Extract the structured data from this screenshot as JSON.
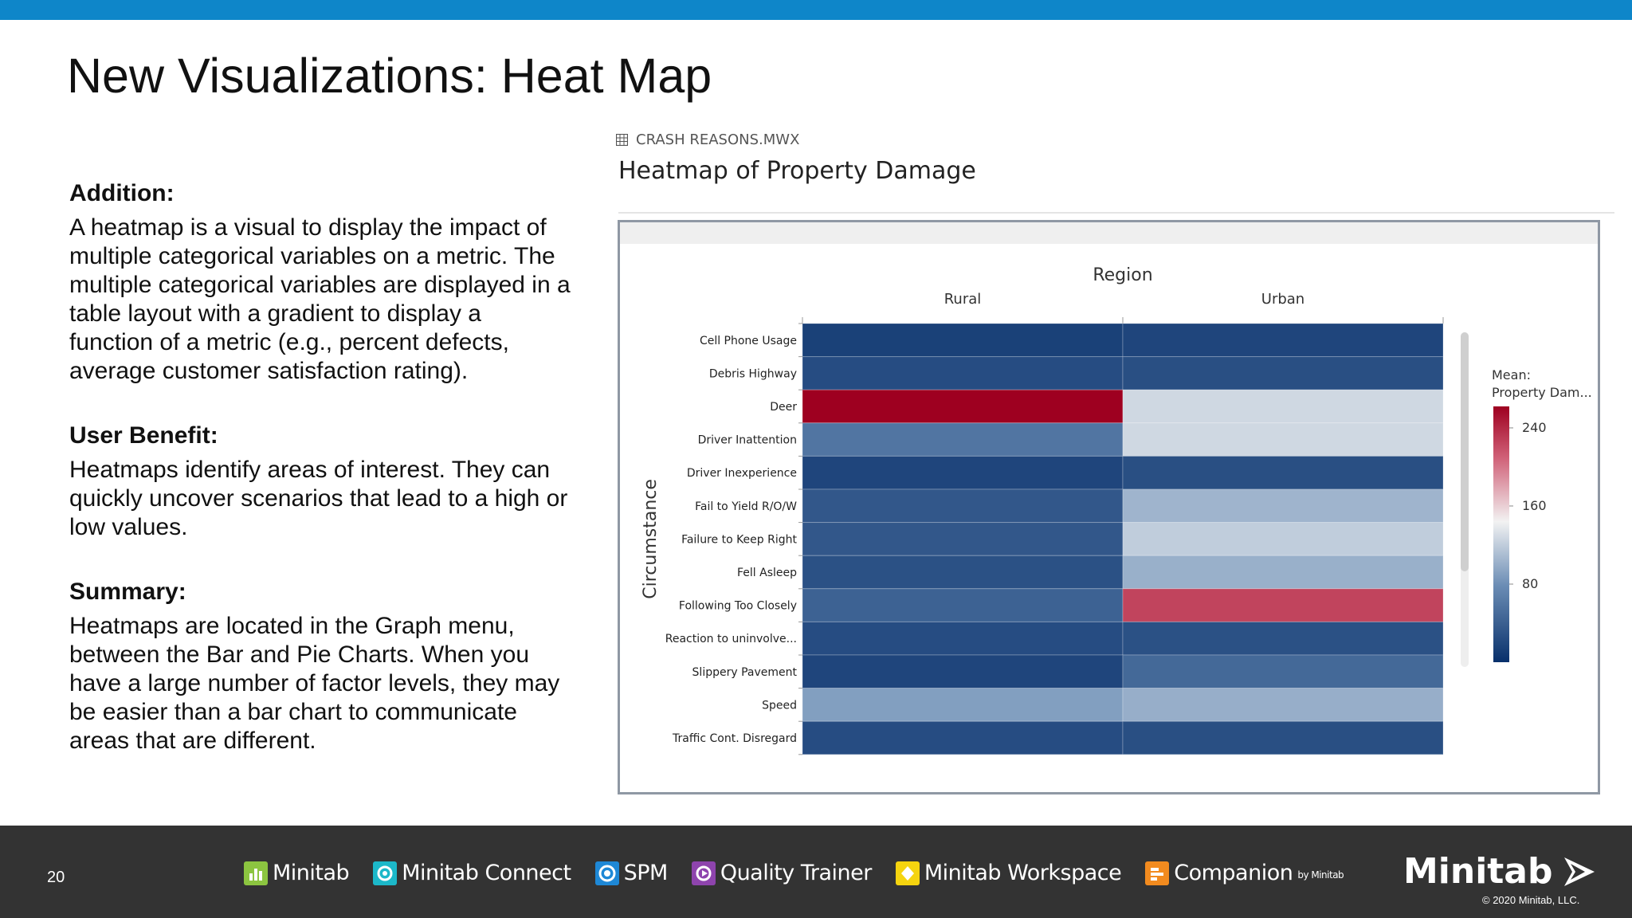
{
  "slide": {
    "title": "New Visualizations: Heat Map",
    "page_number": "20"
  },
  "sections": [
    {
      "heading": "Addition:",
      "body": "A heatmap is a visual to display the impact of multiple categorical variables on a metric. The multiple categorical variables are displayed in a table layout with a gradient to display a function of a metric (e.g., percent defects, average customer satisfaction rating)."
    },
    {
      "heading": "User Benefit:",
      "body": "Heatmaps identify areas of interest. They can quickly uncover scenarios that lead to a high or low values."
    },
    {
      "heading": "Summary:",
      "body": "Heatmaps are located in the Graph menu, between the Bar and Pie Charts. When you have a large number of factor levels, they may be easier than a bar chart to communicate areas that are different."
    }
  ],
  "panel": {
    "file_name": "CRASH REASONS.MWX",
    "heading": "Heatmap of Property Damage"
  },
  "colors": {
    "top_bar": "#0e86c9",
    "footer": "#333333",
    "scale_low": "#08306b",
    "scale_mid": "#f7f7f7",
    "scale_high": "#9e0020"
  },
  "chart_data": {
    "type": "heatmap",
    "title": "Region",
    "xlabel": "Region",
    "ylabel": "Circumstance",
    "x_categories": [
      "Rural",
      "Urban"
    ],
    "y_categories": [
      "Cell Phone Usage",
      "Debris Highway",
      "Deer",
      "Driver Inattention",
      "Driver Inexperience",
      "Fail to Yield R/O/W",
      "Failure to Keep Right",
      "Fell Asleep",
      "Following Too Closely",
      "Reaction to uninvolve...",
      "Slippery Pavement",
      "Speed",
      "Traffic Cont. Disregard"
    ],
    "values": [
      [
        14,
        18
      ],
      [
        24,
        26
      ],
      [
        262,
        127
      ],
      [
        58,
        127
      ],
      [
        18,
        26
      ],
      [
        33,
        104
      ],
      [
        33,
        120
      ],
      [
        28,
        101
      ],
      [
        42,
        225
      ],
      [
        24,
        28
      ],
      [
        18,
        48
      ],
      [
        90,
        100
      ],
      [
        24,
        26
      ]
    ],
    "legend": {
      "title": "Mean: Property Dam...",
      "ticks": [
        240,
        160,
        80
      ],
      "range": [
        0,
        262
      ],
      "position": "right"
    }
  },
  "footer": {
    "products": [
      {
        "name": "Minitab",
        "icon": "minitab-bar-icon",
        "color": "#8cc540"
      },
      {
        "name": "Minitab Connect",
        "icon": "connect-icon",
        "color": "#1cb8c9"
      },
      {
        "name": "SPM",
        "icon": "spm-icon",
        "color": "#1e88d6"
      },
      {
        "name": "Quality Trainer",
        "icon": "quality-trainer-icon",
        "color": "#8e44ad"
      },
      {
        "name": "Minitab Workspace",
        "icon": "workspace-icon",
        "color": "#f5d40f"
      },
      {
        "name": "Companion",
        "icon": "companion-icon",
        "color": "#f28b1f"
      }
    ],
    "companion_suffix": "by Minitab",
    "brand": "Minitab",
    "copyright": "© 2020 Minitab, LLC."
  }
}
